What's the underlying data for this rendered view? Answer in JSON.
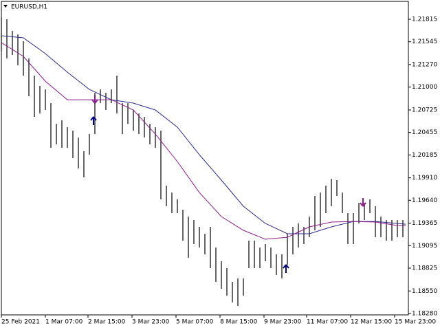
{
  "chart_data": {
    "type": "ohlc",
    "title": "EURUSD,H1",
    "x": [
      0,
      4,
      8,
      12,
      16,
      20,
      24,
      28,
      32,
      36,
      40,
      44,
      48,
      52,
      56,
      60,
      64,
      68,
      72,
      76,
      80,
      84,
      88,
      92,
      96,
      100,
      104,
      108,
      112,
      116,
      120,
      124,
      128,
      132,
      136,
      140,
      144,
      148,
      152,
      156,
      160,
      164,
      168,
      172,
      176,
      180,
      184,
      188,
      192,
      196,
      200,
      204,
      208,
      212,
      216,
      220,
      224,
      228,
      232,
      236,
      240,
      244,
      248,
      252,
      256,
      260,
      264,
      268,
      272,
      276,
      280,
      284,
      288,
      292
    ],
    "high": [
      1.2184,
      1.21815,
      1.21674,
      1.21633,
      1.21551,
      1.21344,
      1.21138,
      1.21014,
      1.20972,
      1.20807,
      1.20559,
      1.20601,
      1.20518,
      1.20477,
      1.20394,
      1.20229,
      1.20435,
      1.20931,
      1.20972,
      1.20931,
      1.20972,
      1.21138,
      1.20807,
      1.20807,
      1.20725,
      1.20683,
      1.20642,
      1.20559,
      1.20518,
      1.20477,
      1.19816,
      1.19733,
      1.19651,
      1.19527,
      1.19444,
      1.19403,
      1.1932,
      1.19238,
      1.1932,
      1.19072,
      1.18907,
      1.18825,
      1.18659,
      1.18701,
      1.18701,
      1.19155,
      1.19155,
      1.19072,
      1.19114,
      1.19072,
      1.1899,
      1.1899,
      1.19238,
      1.1932,
      1.19362,
      1.1932,
      1.19444,
      1.19692,
      1.19733,
      1.19816,
      1.19898,
      1.19882,
      1.19733,
      1.19485,
      1.19485,
      1.19609,
      1.19609,
      1.19651,
      1.19568,
      1.19444,
      1.19403,
      1.19403,
      1.19403,
      1.19403
    ],
    "low": [
      1.21427,
      1.21344,
      1.21385,
      1.21262,
      1.21138,
      1.2089,
      1.20642,
      1.20683,
      1.20725,
      1.2027,
      1.20312,
      1.2027,
      1.2027,
      1.20146,
      1.20022,
      1.19915,
      1.20188,
      1.20435,
      1.20807,
      1.20725,
      1.20807,
      1.20683,
      1.20435,
      1.20559,
      1.20477,
      1.20435,
      1.20394,
      1.20312,
      1.2027,
      1.19651,
      1.19568,
      1.19485,
      1.19485,
      1.19155,
      1.18949,
      1.19114,
      1.19072,
      1.1899,
      1.18825,
      1.18659,
      1.18577,
      1.18494,
      1.18412,
      1.1837,
      1.18494,
      1.18825,
      1.18825,
      1.18825,
      1.18907,
      1.18825,
      1.18742,
      1.18701,
      1.18866,
      1.1899,
      1.19072,
      1.19114,
      1.19196,
      1.19279,
      1.1932,
      1.19485,
      1.19568,
      1.19692,
      1.19485,
      1.19114,
      1.19114,
      1.19362,
      1.19403,
      1.19485,
      1.19196,
      1.19196,
      1.19155,
      1.19155,
      1.19196,
      1.19196
    ],
    "bar_color": "#000000",
    "series": [
      {
        "color": "#2a2a8c",
        "x": [
          0,
          16,
          32,
          48,
          64,
          80,
          96,
          112,
          128,
          144,
          160,
          176,
          192,
          208,
          224,
          240,
          256,
          272,
          288,
          294
        ],
        "values": [
          1.21617,
          1.21592,
          1.21402,
          1.21179,
          1.20972,
          1.20848,
          1.20807,
          1.20725,
          1.20518,
          1.20188,
          1.19882,
          1.19568,
          1.19362,
          1.19238,
          1.19238,
          1.1932,
          1.19386,
          1.19386,
          1.19362,
          1.19353
        ]
      },
      {
        "color": "#8b1a8b",
        "x": [
          0,
          16,
          32,
          48,
          64,
          80,
          96,
          112,
          128,
          144,
          160,
          176,
          192,
          208,
          224,
          240,
          256,
          272,
          288,
          294
        ],
        "values": [
          1.21534,
          1.21369,
          1.21071,
          1.20848,
          1.20848,
          1.20848,
          1.20725,
          1.20435,
          1.20105,
          1.19733,
          1.19444,
          1.19279,
          1.19172,
          1.19196,
          1.1932,
          1.19378,
          1.19386,
          1.19378,
          1.19337,
          1.19337
        ]
      }
    ],
    "arrows": [
      {
        "x": 67,
        "value": 1.20642,
        "direction": "up",
        "color": "#000080"
      },
      {
        "x": 68,
        "value": 1.20807,
        "direction": "down",
        "color": "#8b1a8b"
      },
      {
        "x": 207,
        "value": 1.18866,
        "direction": "up",
        "color": "#000080"
      },
      {
        "x": 263,
        "value": 1.19568,
        "direction": "down",
        "color": "#8b1a8b"
      }
    ],
    "xlim": [
      0,
      296
    ],
    "ylim": [
      1.18263,
      1.2203
    ],
    "xticks": [
      {
        "value": 0,
        "label": "25 Feb 2021"
      },
      {
        "value": 32,
        "label": "1 Mar 07:00"
      },
      {
        "value": 63,
        "label": "2 Mar 15:00"
      },
      {
        "value": 95,
        "label": "3 Mar 23:00"
      },
      {
        "value": 127,
        "label": "5 Mar 07:00"
      },
      {
        "value": 159,
        "label": "8 Mar 15:00"
      },
      {
        "value": 191,
        "label": "9 Mar 23:00"
      },
      {
        "value": 222,
        "label": "11 Mar 07:00"
      },
      {
        "value": 254,
        "label": "12 Mar 15:00"
      },
      {
        "value": 286,
        "label": "15 Mar 23:00"
      }
    ],
    "yticks": [
      1.21815,
      1.21545,
      {
        "value": 1.2127,
        "label": "1.21270"
      },
      {
        "value": 1.21,
        "label": "1.21000"
      },
      1.20725,
      1.20455,
      1.20185,
      {
        "value": 1.1991,
        "label": "1.19910"
      },
      {
        "value": 1.1964,
        "label": "1.19640"
      },
      1.19365,
      1.19095,
      1.18825,
      {
        "value": 1.1855,
        "label": "1.18550"
      },
      {
        "value": 1.1828,
        "label": "1.18280"
      }
    ]
  }
}
